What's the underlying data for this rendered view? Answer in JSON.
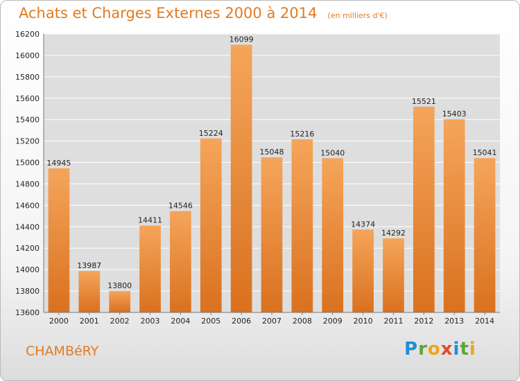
{
  "header": {
    "title": "Achats et Charges Externes 2000 à 2014",
    "unit": "(en milliers d'€)"
  },
  "footer": {
    "city": "CHAMBéRY",
    "brand": "Proxiti",
    "brand_letters": [
      "P",
      "r",
      "o",
      "x",
      "i",
      "t",
      "i"
    ],
    "brand_colors": [
      "#1f8fd6",
      "#5aa63a",
      "#f0a31a",
      "#e34a2a",
      "#1f8fd6",
      "#5aa63a",
      "#f0a31a"
    ]
  },
  "chart_data": {
    "type": "bar",
    "title": "Achats et Charges Externes 2000 à 2014",
    "subtitle": "(en milliers d'€)",
    "xlabel": "",
    "ylabel": "",
    "categories": [
      "2000",
      "2001",
      "2002",
      "2003",
      "2004",
      "2005",
      "2006",
      "2007",
      "2008",
      "2009",
      "2010",
      "2011",
      "2012",
      "2013",
      "2014"
    ],
    "values": [
      14945,
      13987,
      13800,
      14411,
      14546,
      15224,
      16099,
      15048,
      15216,
      15040,
      14374,
      14292,
      15521,
      15403,
      15041
    ],
    "ylim": [
      13600,
      16200
    ],
    "yticks": [
      13600,
      13800,
      14000,
      14200,
      14400,
      14600,
      14800,
      15000,
      15200,
      15400,
      15600,
      15800,
      16000,
      16200
    ],
    "grid": true,
    "legend": "none",
    "bar_color_top": "#f5a55a",
    "bar_color_bottom": "#d9711f",
    "plot_background": "#dedede",
    "grid_color": "#ffffff"
  }
}
